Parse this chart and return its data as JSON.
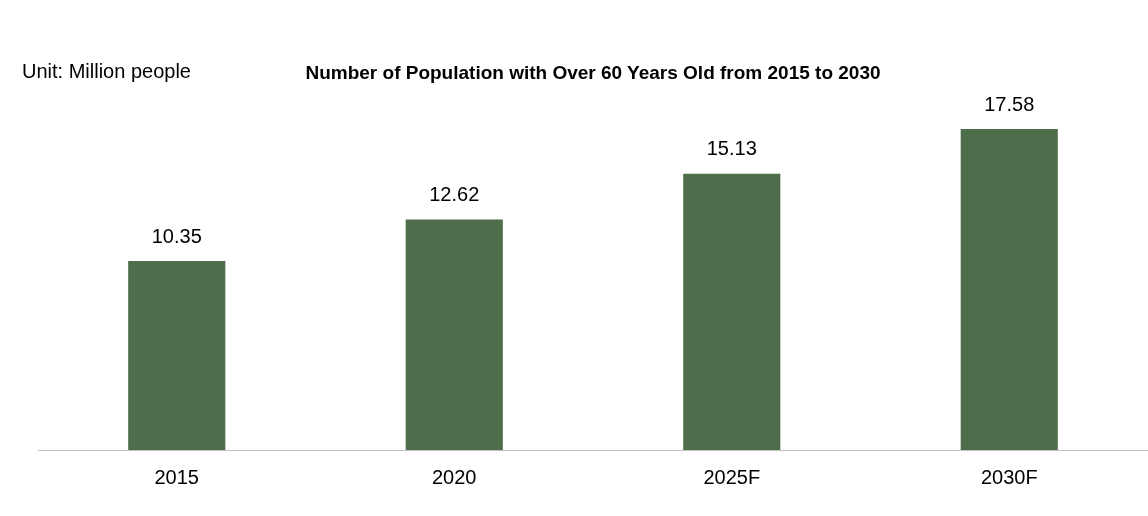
{
  "chart_data": {
    "type": "bar",
    "title": "Number of Population with Over 60 Years Old from 2015 to 2030",
    "annotations": [
      "Unit: Million people"
    ],
    "categories": [
      "2015",
      "2020",
      "2025F",
      "2030F"
    ],
    "values": [
      10.35,
      12.62,
      15.13,
      17.58
    ],
    "color": "#4e6d4b",
    "data_labels": true,
    "grid": false,
    "legend": false
  }
}
